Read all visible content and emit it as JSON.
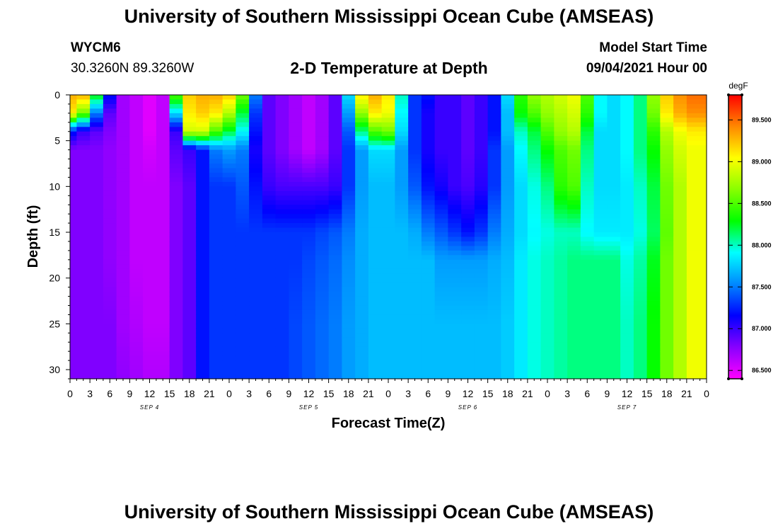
{
  "header": {
    "title_top": "University of Southern Mississippi Ocean Cube (AMSEAS)",
    "title_bottom": "University of Southern Mississippi Ocean Cube (AMSEAS)",
    "station": "WYCM6",
    "coords": "30.3260N  89.3260W",
    "plot_title": "2-D Temperature at Depth",
    "start_label": "Model Start Time",
    "start_value": "09/04/2021 Hour 00"
  },
  "colors": {
    "palette": [
      "#ff00ff",
      "#8800ff",
      "#0000ff",
      "#0088ff",
      "#00ffff",
      "#00ff00",
      "#88ff00",
      "#ffff00",
      "#ff8800",
      "#ff0000"
    ]
  },
  "chart_data": {
    "type": "heatmap",
    "title": "2-D Temperature at Depth",
    "xlabel": "Forecast Time(Z)",
    "ylabel": "Depth (ft)",
    "x_unit": "hours from 09/04/2021 00Z",
    "xlim": [
      0,
      96
    ],
    "ylim": [
      0,
      31
    ],
    "y_inverted": true,
    "x_tick_labels": [
      "0",
      "3",
      "6",
      "9",
      "12",
      "15",
      "18",
      "21",
      "0",
      "3",
      "6",
      "9",
      "12",
      "15",
      "18",
      "21",
      "0",
      "3",
      "6",
      "9",
      "12",
      "15",
      "18",
      "21",
      "0",
      "3",
      "6",
      "9",
      "12",
      "15",
      "18",
      "21",
      "0"
    ],
    "y_ticks": [
      0,
      5,
      10,
      15,
      20,
      25,
      30
    ],
    "day_labels": [
      {
        "label": "SEP 4",
        "hour": 12
      },
      {
        "label": "SEP 5",
        "hour": 36
      },
      {
        "label": "SEP 6",
        "hour": 60
      },
      {
        "label": "SEP 7",
        "hour": 84
      }
    ],
    "colorbar": {
      "unit": "degF",
      "min": 86.4,
      "max": 89.8,
      "ticks": [
        "86.500",
        "87.000",
        "87.500",
        "88.000",
        "88.500",
        "89.000",
        "89.500"
      ]
    },
    "hours": [
      0,
      2,
      4,
      6,
      8,
      10,
      12,
      14,
      16,
      18,
      20,
      22,
      24,
      26,
      28,
      30,
      32,
      34,
      36,
      38,
      40,
      42,
      44,
      46,
      48,
      50,
      52,
      54,
      56,
      58,
      60,
      62,
      64,
      66,
      68,
      70,
      72,
      74,
      76,
      78,
      80,
      82,
      84,
      86,
      88,
      90,
      92,
      94,
      96
    ],
    "profiles": {
      "depths": [
        0,
        2,
        4,
        6,
        10,
        15,
        18,
        25,
        31
      ],
      "hours": [
        0,
        2,
        4,
        6,
        8,
        10,
        12,
        14,
        16,
        18,
        20,
        22,
        24,
        26,
        28,
        30,
        32,
        34,
        36,
        38,
        40,
        42,
        44,
        46,
        48,
        50,
        52,
        54,
        56,
        58,
        60,
        62,
        64,
        66,
        68,
        70,
        72,
        74,
        76,
        78,
        80,
        82,
        84,
        86,
        88,
        90,
        92,
        94,
        96
      ],
      "values": [
        [
          89.3,
          89.1,
          87.2,
          86.8,
          86.8,
          86.8,
          86.8,
          86.8,
          86.8
        ],
        [
          89.3,
          88.6,
          87.0,
          86.8,
          86.8,
          86.8,
          86.8,
          86.8,
          86.8
        ],
        [
          88.3,
          87.5,
          86.9,
          86.8,
          86.8,
          86.8,
          86.8,
          86.8,
          86.8
        ],
        [
          87.2,
          86.9,
          86.8,
          86.75,
          86.75,
          86.75,
          86.75,
          86.8,
          86.8
        ],
        [
          86.7,
          86.7,
          86.7,
          86.7,
          86.7,
          86.7,
          86.7,
          86.7,
          86.75
        ],
        [
          86.6,
          86.6,
          86.6,
          86.6,
          86.6,
          86.6,
          86.6,
          86.65,
          86.7
        ],
        [
          86.5,
          86.5,
          86.5,
          86.55,
          86.6,
          86.6,
          86.6,
          86.6,
          86.65
        ],
        [
          86.6,
          86.6,
          86.6,
          86.6,
          86.6,
          86.6,
          86.6,
          86.6,
          86.65
        ],
        [
          88.5,
          87.8,
          87.0,
          86.9,
          86.8,
          86.8,
          86.8,
          86.8,
          86.8
        ],
        [
          89.2,
          89.1,
          88.9,
          87.0,
          86.9,
          86.9,
          86.9,
          86.9,
          86.9
        ],
        [
          89.3,
          89.2,
          88.9,
          87.2,
          87.2,
          87.2,
          87.2,
          87.2,
          87.2
        ],
        [
          89.3,
          89.1,
          88.5,
          87.5,
          87.3,
          87.3,
          87.3,
          87.3,
          87.3
        ],
        [
          89.2,
          88.8,
          88.2,
          87.6,
          87.3,
          87.3,
          87.3,
          87.3,
          87.3
        ],
        [
          88.6,
          88.2,
          87.9,
          87.5,
          87.4,
          87.3,
          87.3,
          87.3,
          87.3
        ],
        [
          87.5,
          87.3,
          87.2,
          87.1,
          87.2,
          87.3,
          87.3,
          87.3,
          87.3
        ],
        [
          86.9,
          86.9,
          86.9,
          86.9,
          87.0,
          87.3,
          87.3,
          87.3,
          87.3
        ],
        [
          86.8,
          86.8,
          86.8,
          86.8,
          86.95,
          87.3,
          87.3,
          87.3,
          87.3
        ],
        [
          86.7,
          86.7,
          86.7,
          86.7,
          86.95,
          87.3,
          87.3,
          87.35,
          87.35
        ],
        [
          86.6,
          86.6,
          86.6,
          86.6,
          86.95,
          87.3,
          87.35,
          87.4,
          87.4
        ],
        [
          86.7,
          86.7,
          86.7,
          86.7,
          86.95,
          87.35,
          87.4,
          87.45,
          87.45
        ],
        [
          86.9,
          86.9,
          86.9,
          86.9,
          87.0,
          87.4,
          87.45,
          87.5,
          87.5
        ],
        [
          87.8,
          87.6,
          87.4,
          87.3,
          87.3,
          87.5,
          87.55,
          87.6,
          87.6
        ],
        [
          89.1,
          88.7,
          88.1,
          87.6,
          87.6,
          87.65,
          87.65,
          87.65,
          87.65
        ],
        [
          89.3,
          89.1,
          88.5,
          87.8,
          87.7,
          87.7,
          87.7,
          87.7,
          87.7
        ],
        [
          89.1,
          89.0,
          88.6,
          87.8,
          87.7,
          87.7,
          87.7,
          87.7,
          87.7
        ],
        [
          88.0,
          87.9,
          87.8,
          87.6,
          87.6,
          87.7,
          87.7,
          87.7,
          87.7
        ],
        [
          87.3,
          87.3,
          87.3,
          87.3,
          87.4,
          87.65,
          87.7,
          87.7,
          87.7
        ],
        [
          87.2,
          87.1,
          87.1,
          87.1,
          87.2,
          87.5,
          87.7,
          87.7,
          87.7
        ],
        [
          87.0,
          87.0,
          87.0,
          87.0,
          87.1,
          87.4,
          87.6,
          87.7,
          87.7
        ],
        [
          87.0,
          87.0,
          87.0,
          87.0,
          87.0,
          87.3,
          87.6,
          87.7,
          87.7
        ],
        [
          86.9,
          86.9,
          86.9,
          86.9,
          86.95,
          87.2,
          87.6,
          87.7,
          87.7
        ],
        [
          87.0,
          87.0,
          87.0,
          87.0,
          87.05,
          87.3,
          87.6,
          87.7,
          87.7
        ],
        [
          87.2,
          87.2,
          87.2,
          87.3,
          87.3,
          87.5,
          87.65,
          87.7,
          87.7
        ],
        [
          87.8,
          87.7,
          87.7,
          87.6,
          87.6,
          87.65,
          87.7,
          87.75,
          87.75
        ],
        [
          88.4,
          88.3,
          88.0,
          87.9,
          87.8,
          87.8,
          87.85,
          87.85,
          87.85
        ],
        [
          88.7,
          88.5,
          88.2,
          88.1,
          87.95,
          87.9,
          87.95,
          87.95,
          87.95
        ],
        [
          88.8,
          88.7,
          88.5,
          88.3,
          88.1,
          87.95,
          88.0,
          88.0,
          88.0
        ],
        [
          88.9,
          88.8,
          88.7,
          88.5,
          88.4,
          88.0,
          88.05,
          88.05,
          88.05
        ],
        [
          89.0,
          88.9,
          88.8,
          88.6,
          88.5,
          88.0,
          88.1,
          88.1,
          88.1
        ],
        [
          88.5,
          88.4,
          88.2,
          88.1,
          88.0,
          87.9,
          88.1,
          88.1,
          88.1
        ],
        [
          87.9,
          87.9,
          87.8,
          87.8,
          87.8,
          87.85,
          88.1,
          88.1,
          88.1
        ],
        [
          87.8,
          87.8,
          87.8,
          87.8,
          87.8,
          87.85,
          88.1,
          88.1,
          88.1
        ],
        [
          87.9,
          87.9,
          87.9,
          87.9,
          87.85,
          87.85,
          87.95,
          88.0,
          88.0
        ],
        [
          88.1,
          88.1,
          88.1,
          88.1,
          88.0,
          87.95,
          88.05,
          88.1,
          88.1
        ],
        [
          88.7,
          88.6,
          88.4,
          88.3,
          88.2,
          88.15,
          88.25,
          88.3,
          88.3
        ],
        [
          89.2,
          89.1,
          88.8,
          88.7,
          88.6,
          88.55,
          88.6,
          88.6,
          88.6
        ],
        [
          89.4,
          89.3,
          89.0,
          88.9,
          88.8,
          88.8,
          88.8,
          88.8,
          88.8
        ],
        [
          89.5,
          89.4,
          89.1,
          89.0,
          89.0,
          89.0,
          89.0,
          89.0,
          89.0
        ],
        [
          89.5,
          89.4,
          89.1,
          89.0,
          89.0,
          89.0,
          89.0,
          89.0,
          89.0
        ]
      ]
    }
  }
}
